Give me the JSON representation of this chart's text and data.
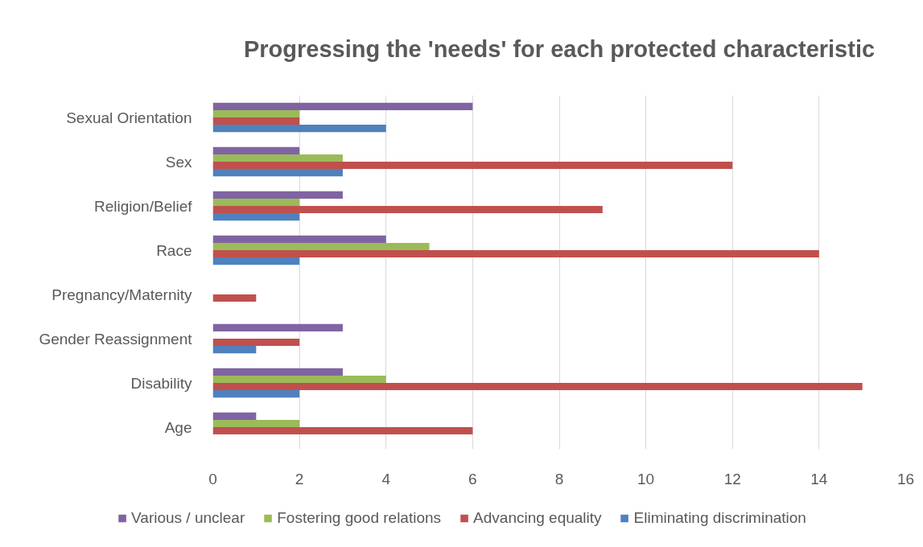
{
  "chart_data": {
    "type": "bar",
    "orientation": "horizontal",
    "title": "Progressing the 'needs' for each protected characteristic",
    "categories": [
      "Sexual Orientation",
      "Sex",
      "Religion/Belief",
      "Race",
      "Pregnancy/Maternity",
      "Gender Reassignment",
      "Disability",
      "Age"
    ],
    "series": [
      {
        "name": "Various / unclear",
        "color": "#8064a2",
        "values": [
          6,
          2,
          3,
          4,
          null,
          3,
          3,
          1
        ]
      },
      {
        "name": "Fostering good relations",
        "color": "#9bbb59",
        "values": [
          2,
          3,
          2,
          5,
          null,
          null,
          4,
          2
        ]
      },
      {
        "name": "Advancing equality",
        "color": "#c0504d",
        "values": [
          2,
          12,
          9,
          14,
          1,
          2,
          15,
          6
        ]
      },
      {
        "name": "Eliminating discrimination",
        "color": "#4f81bd",
        "values": [
          4,
          3,
          2,
          2,
          null,
          1,
          2,
          null
        ]
      }
    ],
    "xlim": [
      0,
      16
    ],
    "xticks": [
      0,
      2,
      4,
      6,
      8,
      10,
      12,
      14,
      16
    ],
    "grid": "x",
    "legend": "bottom"
  }
}
